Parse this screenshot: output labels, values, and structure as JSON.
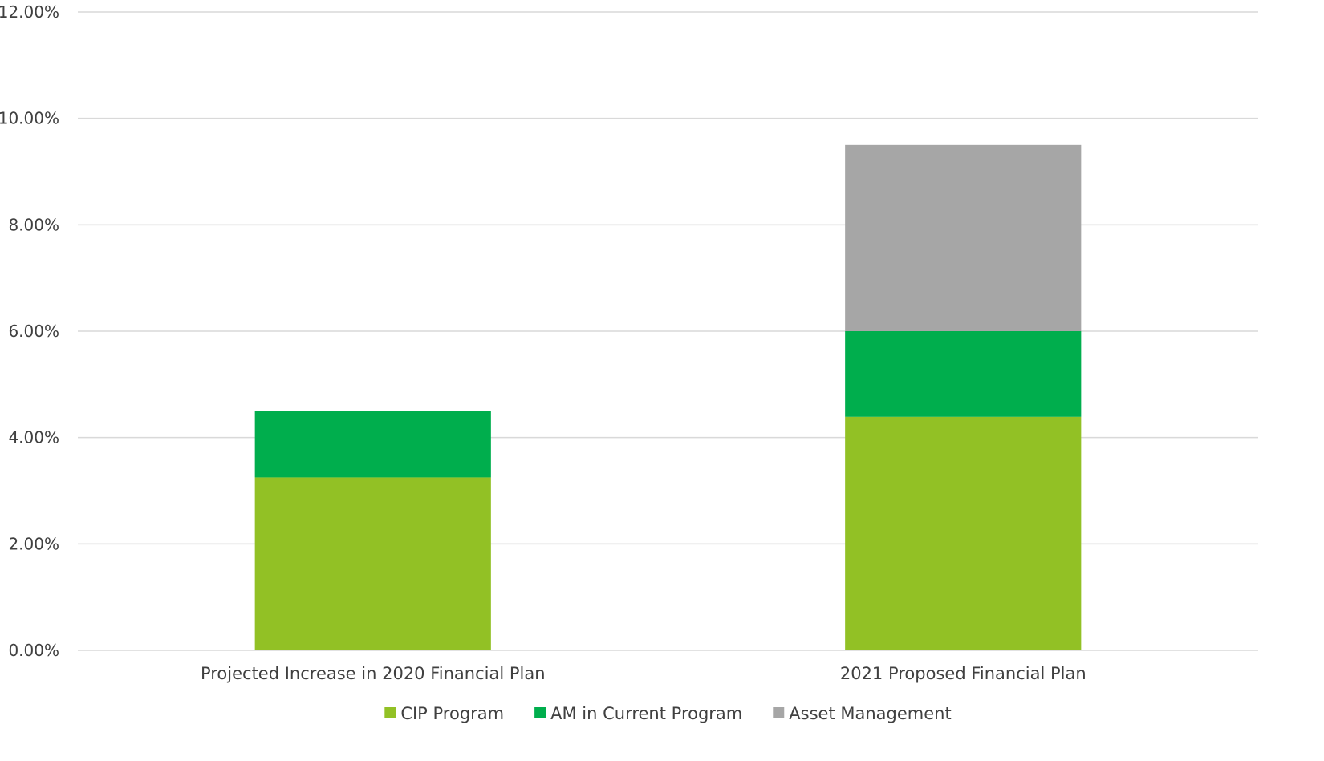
{
  "chart_data": {
    "type": "bar",
    "stacked": true,
    "categories": [
      "Projected Increase in 2020 Financial Plan",
      "2021 Proposed Financial Plan"
    ],
    "series": [
      {
        "name": "CIP Program",
        "color": "#92C125",
        "values": [
          3.25,
          4.39
        ]
      },
      {
        "name": "AM in Current Program",
        "color": "#00AE4D",
        "values": [
          1.25,
          1.61
        ]
      },
      {
        "name": "Asset Management",
        "color": "#A6A6A6",
        "values": [
          0,
          3.5
        ]
      }
    ],
    "ylim": [
      0,
      12
    ],
    "y_ticks": [
      0,
      2,
      4,
      6,
      8,
      10,
      12
    ],
    "y_tick_labels": [
      "0.00%",
      "2.00%",
      "4.00%",
      "6.00%",
      "8.00%",
      "10.00%",
      "12.00%"
    ],
    "grid": true,
    "legend_position": "bottom",
    "title": "",
    "xlabel": "",
    "ylabel": ""
  }
}
